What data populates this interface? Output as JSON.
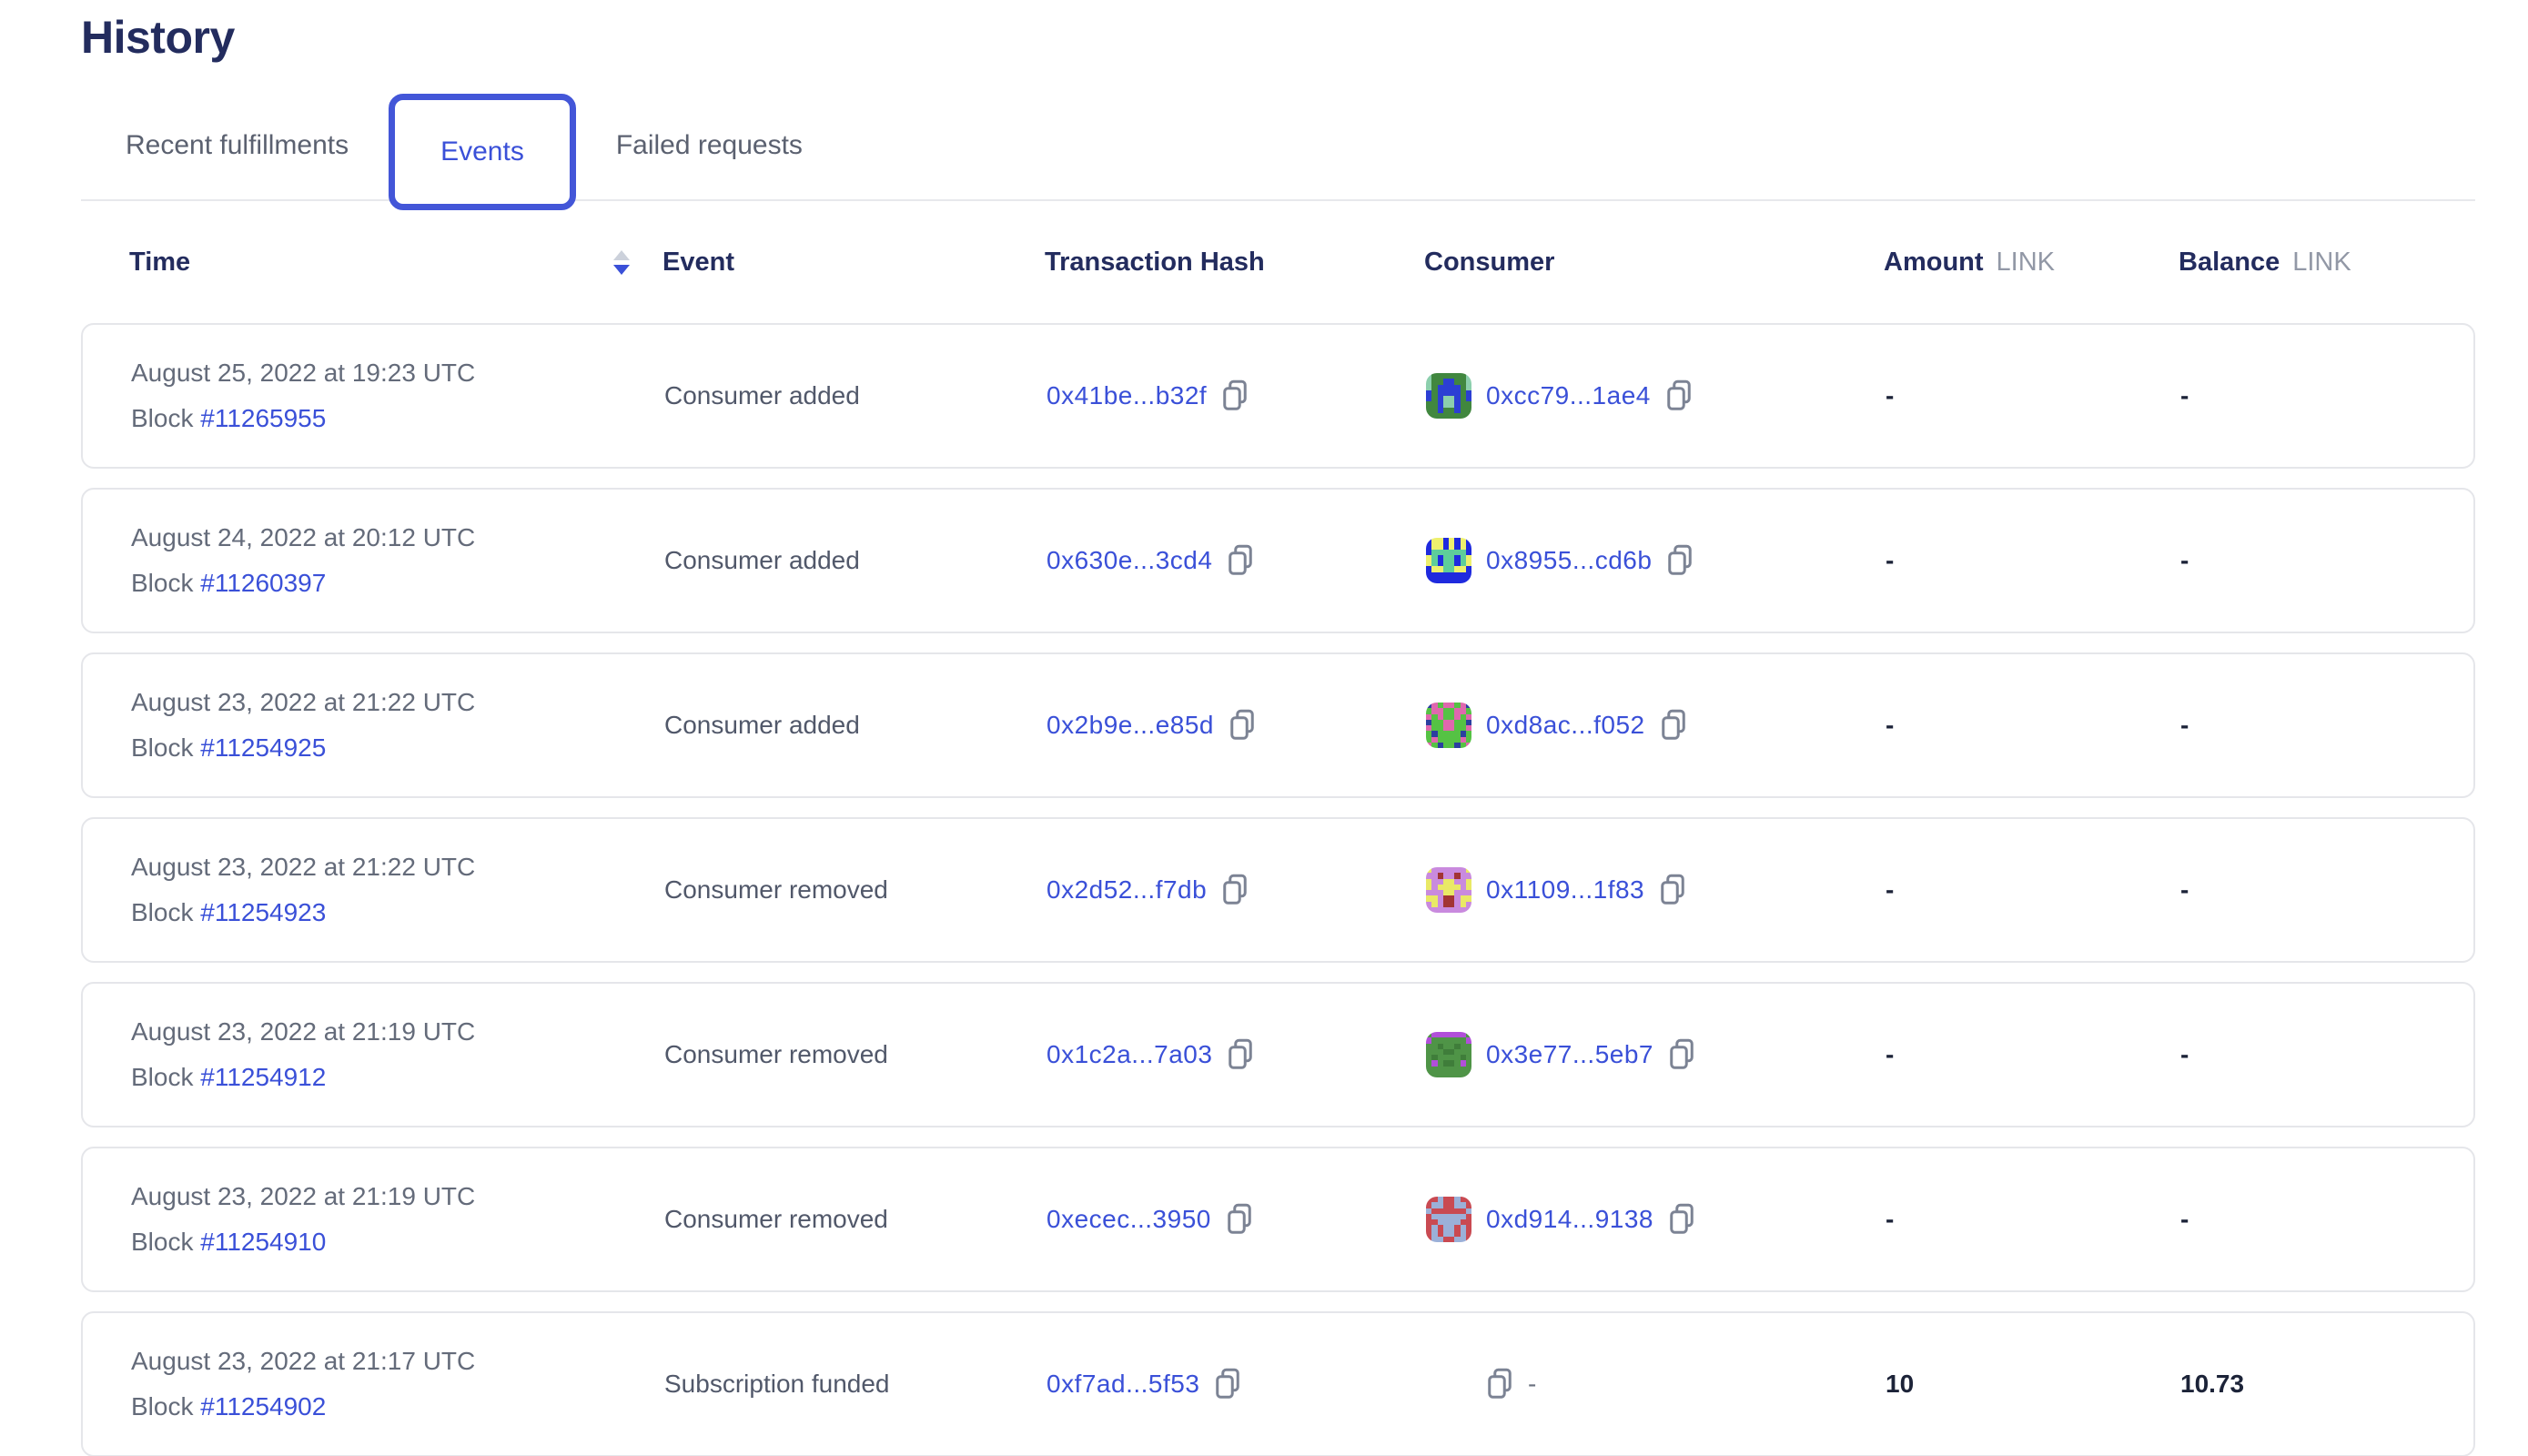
{
  "page": {
    "title": "History"
  },
  "tabs": [
    {
      "label": "Recent fulfillments",
      "active": false
    },
    {
      "label": "Events",
      "active": true
    },
    {
      "label": "Failed requests",
      "active": false
    }
  ],
  "icons": {
    "sort": "sort-descending-icon",
    "copy": "copy-icon"
  },
  "colors": {
    "title_navy": "#232c5e",
    "link_blue": "#3a50d8",
    "active_tab_border": "#4356d8",
    "inactive_tab_gray": "#5b6170",
    "body_gray": "#646b7a",
    "unit_gray": "#9298a6",
    "card_border": "#e5e6ea",
    "value_dark": "#1c2338"
  },
  "table": {
    "columns": {
      "time": "Time",
      "event": "Event",
      "tx": "Transaction Hash",
      "consumer": "Consumer",
      "amount": "Amount",
      "balance": "Balance",
      "unit": "LINK"
    },
    "labels": {
      "block": "Block"
    },
    "rows": [
      {
        "date": "August 25, 2022 at 19:23 UTC",
        "block": "#11265955",
        "event": "Consumer added",
        "tx": "0x41be...b32f",
        "consumer": {
          "address": "0xcc79...1ae4",
          "icon": {
            "palette": {
              "g": "#41873f",
              "b": "#2c3fd4",
              "t": "#8ccfad"
            },
            "grid": [
              "tggggggt",
              "tggbbggt",
              "tgbbbbgt",
              "bgbbbbgb",
              "bgbttbgb",
              "ggbttbgg",
              "ggbggbgg",
              "gggggggg"
            ]
          }
        },
        "amount": "-",
        "balance": "-"
      },
      {
        "date": "August 24, 2022 at 20:12 UTC",
        "block": "#11260397",
        "event": "Consumer added",
        "tx": "0x630e...3cd4",
        "consumer": {
          "address": "0x8955...cd6b",
          "icon": {
            "palette": {
              "b": "#1f2ade",
              "y": "#eef06e",
              "m": "#5ecd9a"
            },
            "grid": [
              "byybybyb",
              "byybybyb",
              "bmmmmmmb",
              "ymbmmbmy",
              "ymbmmbmy",
              "byymmyyb",
              "bbbbbbbb",
              "bbbbbbbb"
            ]
          }
        },
        "amount": "-",
        "balance": "-"
      },
      {
        "date": "August 23, 2022 at 21:22 UTC",
        "block": "#11254925",
        "event": "Consumer added",
        "tx": "0x2b9e...e85d",
        "consumer": {
          "address": "0xd8ac...f052",
          "icon": {
            "palette": {
              "g": "#55c244",
              "p": "#df67ae",
              "n": "#2b3fa0"
            },
            "grid": [
              "npgppgpn",
              "gppggppg",
              "pgpggpgp",
              "nggppggn",
              "pggppggp",
              "gnggggng",
              "gpggggpg",
              "pgnggngp"
            ]
          }
        },
        "amount": "-",
        "balance": "-"
      },
      {
        "date": "August 23, 2022 at 21:22 UTC",
        "block": "#11254923",
        "event": "Consumer removed",
        "tx": "0x2d52...f7db",
        "consumer": {
          "address": "0x1109...1f83",
          "icon": {
            "palette": {
              "o": "#c98ade",
              "y": "#e9e966",
              "r": "#a23434"
            },
            "grid": [
              "yooooooy",
              "oorooroo",
              "yooyyooy",
              "yoyyyyoy",
              "oooyyooo",
              "yyorroyy",
              "oyorroyo",
              "oooooooo"
            ]
          }
        },
        "amount": "-",
        "balance": "-"
      },
      {
        "date": "August 23, 2022 at 21:19 UTC",
        "block": "#11254912",
        "event": "Consumer removed",
        "tx": "0x1c2a...7a03",
        "consumer": {
          "address": "0x3e77...5eb7",
          "icon": {
            "palette": {
              "g": "#4f9447",
              "p": "#b14fd9",
              "d": "#3f7d3a"
            },
            "grid": [
              "gppppppg",
              "pggggggp",
              "ggdggdgg",
              "gggddggg",
              "gdggggdg",
              "gpgddgpg",
              "gggggggg",
              "gggggggg"
            ]
          }
        },
        "amount": "-",
        "balance": "-"
      },
      {
        "date": "August 23, 2022 at 21:19 UTC",
        "block": "#11254910",
        "event": "Consumer removed",
        "tx": "0xecec...3950",
        "consumer": {
          "address": "0xd914...9138",
          "icon": {
            "palette": {
              "r": "#c94a52",
              "b": "#9bb0d8"
            },
            "grid": [
              "rrbrrbrr",
              "rbbrrbbr",
              "brrrrrrb",
              "rbbbbbbr",
              "rrbbbbrr",
              "rbrbbrbr",
              "rbrbbrbr",
              "rbbrrbbr"
            ]
          }
        },
        "amount": "-",
        "balance": "-"
      },
      {
        "date": "August 23, 2022 at 21:17 UTC",
        "block": "#11254902",
        "event": "Subscription funded",
        "tx": "0xf7ad...5f53",
        "consumer": null,
        "consumer_placeholder": "-",
        "amount": "10",
        "balance": "10.73"
      }
    ]
  }
}
